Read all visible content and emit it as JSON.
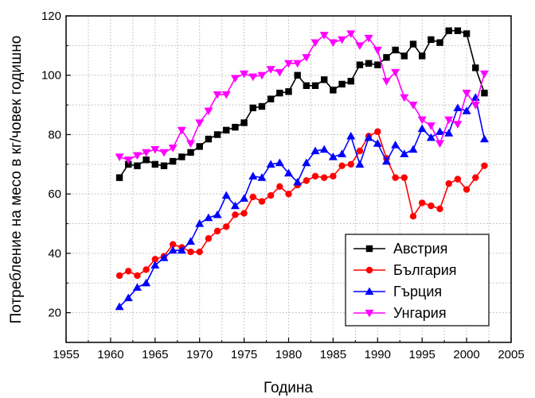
{
  "chart_data": {
    "type": "line",
    "title": "",
    "xlabel": "Година",
    "ylabel": "Потребление на месо в кг/човек годишно",
    "xlim": [
      1955,
      2005
    ],
    "ylim": [
      10,
      120
    ],
    "xticks": [
      1955,
      1960,
      1965,
      1970,
      1975,
      1980,
      1985,
      1990,
      1995,
      2000,
      2005
    ],
    "yticks": [
      20,
      40,
      60,
      80,
      100,
      120
    ],
    "grid": true,
    "legend_position": "bottom-right",
    "series": [
      {
        "name": "Австрия",
        "color": "#000000",
        "marker": "square",
        "x": [
          1961,
          1962,
          1963,
          1964,
          1965,
          1966,
          1967,
          1968,
          1969,
          1970,
          1971,
          1972,
          1973,
          1974,
          1975,
          1976,
          1977,
          1978,
          1979,
          1980,
          1981,
          1982,
          1983,
          1984,
          1985,
          1986,
          1987,
          1988,
          1989,
          1990,
          1991,
          1992,
          1993,
          1994,
          1995,
          1996,
          1997,
          1998,
          1999,
          2000,
          2001,
          2002
        ],
        "y": [
          65.5,
          70,
          69.5,
          71.5,
          70,
          69.5,
          71,
          72.5,
          74,
          76,
          78.5,
          80,
          81.5,
          82.5,
          84,
          89,
          89.5,
          92,
          94,
          94.5,
          100,
          96.5,
          96.5,
          98.5,
          95,
          97,
          98,
          103.5,
          104,
          103.5,
          106,
          108.5,
          106.5,
          110.5,
          106.5,
          112,
          111,
          115,
          115,
          114,
          102.5,
          94
        ]
      },
      {
        "name": "България",
        "color": "#ff0000",
        "marker": "circle",
        "x": [
          1961,
          1962,
          1963,
          1964,
          1965,
          1966,
          1967,
          1968,
          1969,
          1970,
          1971,
          1972,
          1973,
          1974,
          1975,
          1976,
          1977,
          1978,
          1979,
          1980,
          1981,
          1982,
          1983,
          1984,
          1985,
          1986,
          1987,
          1988,
          1989,
          1990,
          1991,
          1992,
          1993,
          1994,
          1995,
          1996,
          1997,
          1998,
          1999,
          2000,
          2001,
          2002
        ],
        "y": [
          32.5,
          34,
          32.5,
          34.5,
          38,
          39,
          43,
          42,
          40.5,
          40.5,
          45,
          47.5,
          49,
          53,
          53.5,
          59,
          57.5,
          59.5,
          62.5,
          60,
          63,
          64.5,
          66,
          65.5,
          66,
          69.5,
          70,
          74.5,
          79.5,
          81,
          72,
          65.5,
          65.5,
          52.5,
          57,
          56,
          55,
          63.5,
          65,
          61.5,
          65.5,
          69.5
        ]
      },
      {
        "name": "Гърция",
        "color": "#0000ff",
        "marker": "triangle-up",
        "x": [
          1961,
          1962,
          1963,
          1964,
          1965,
          1966,
          1967,
          1968,
          1969,
          1970,
          1971,
          1972,
          1973,
          1974,
          1975,
          1976,
          1977,
          1978,
          1979,
          1980,
          1981,
          1982,
          1983,
          1984,
          1985,
          1986,
          1987,
          1988,
          1989,
          1990,
          1991,
          1992,
          1993,
          1994,
          1995,
          1996,
          1997,
          1998,
          1999,
          2000,
          2001,
          2002
        ],
        "y": [
          22,
          25,
          28.5,
          30,
          36,
          38.5,
          41,
          41,
          44,
          50,
          52,
          53,
          59.5,
          56,
          58.5,
          66,
          65.5,
          70,
          70.5,
          67,
          64,
          70.5,
          74.5,
          75,
          72.5,
          73.5,
          79.5,
          70,
          79,
          77,
          71,
          76.5,
          73.5,
          75,
          82,
          79,
          81,
          80.5,
          89,
          88,
          92.5,
          78.5
        ]
      },
      {
        "name": "Унгария",
        "color": "#ff00ff",
        "marker": "triangle-down",
        "x": [
          1961,
          1962,
          1963,
          1964,
          1965,
          1966,
          1967,
          1968,
          1969,
          1970,
          1971,
          1972,
          1973,
          1974,
          1975,
          1976,
          1977,
          1978,
          1979,
          1980,
          1981,
          1982,
          1983,
          1984,
          1985,
          1986,
          1987,
          1988,
          1989,
          1990,
          1991,
          1992,
          1993,
          1994,
          1995,
          1996,
          1997,
          1998,
          1999,
          2000,
          2001,
          2002
        ],
        "y": [
          72.5,
          71.5,
          73,
          74,
          75,
          74,
          75.5,
          81.5,
          77,
          84,
          88,
          93.5,
          93.5,
          99,
          100.5,
          99.5,
          100,
          102,
          101,
          104,
          104,
          106,
          111,
          113.5,
          111,
          112,
          114,
          110,
          112.5,
          108.5,
          98,
          101,
          92.5,
          90,
          85,
          83,
          77,
          85,
          83.5,
          94,
          90,
          100.5
        ]
      }
    ]
  }
}
